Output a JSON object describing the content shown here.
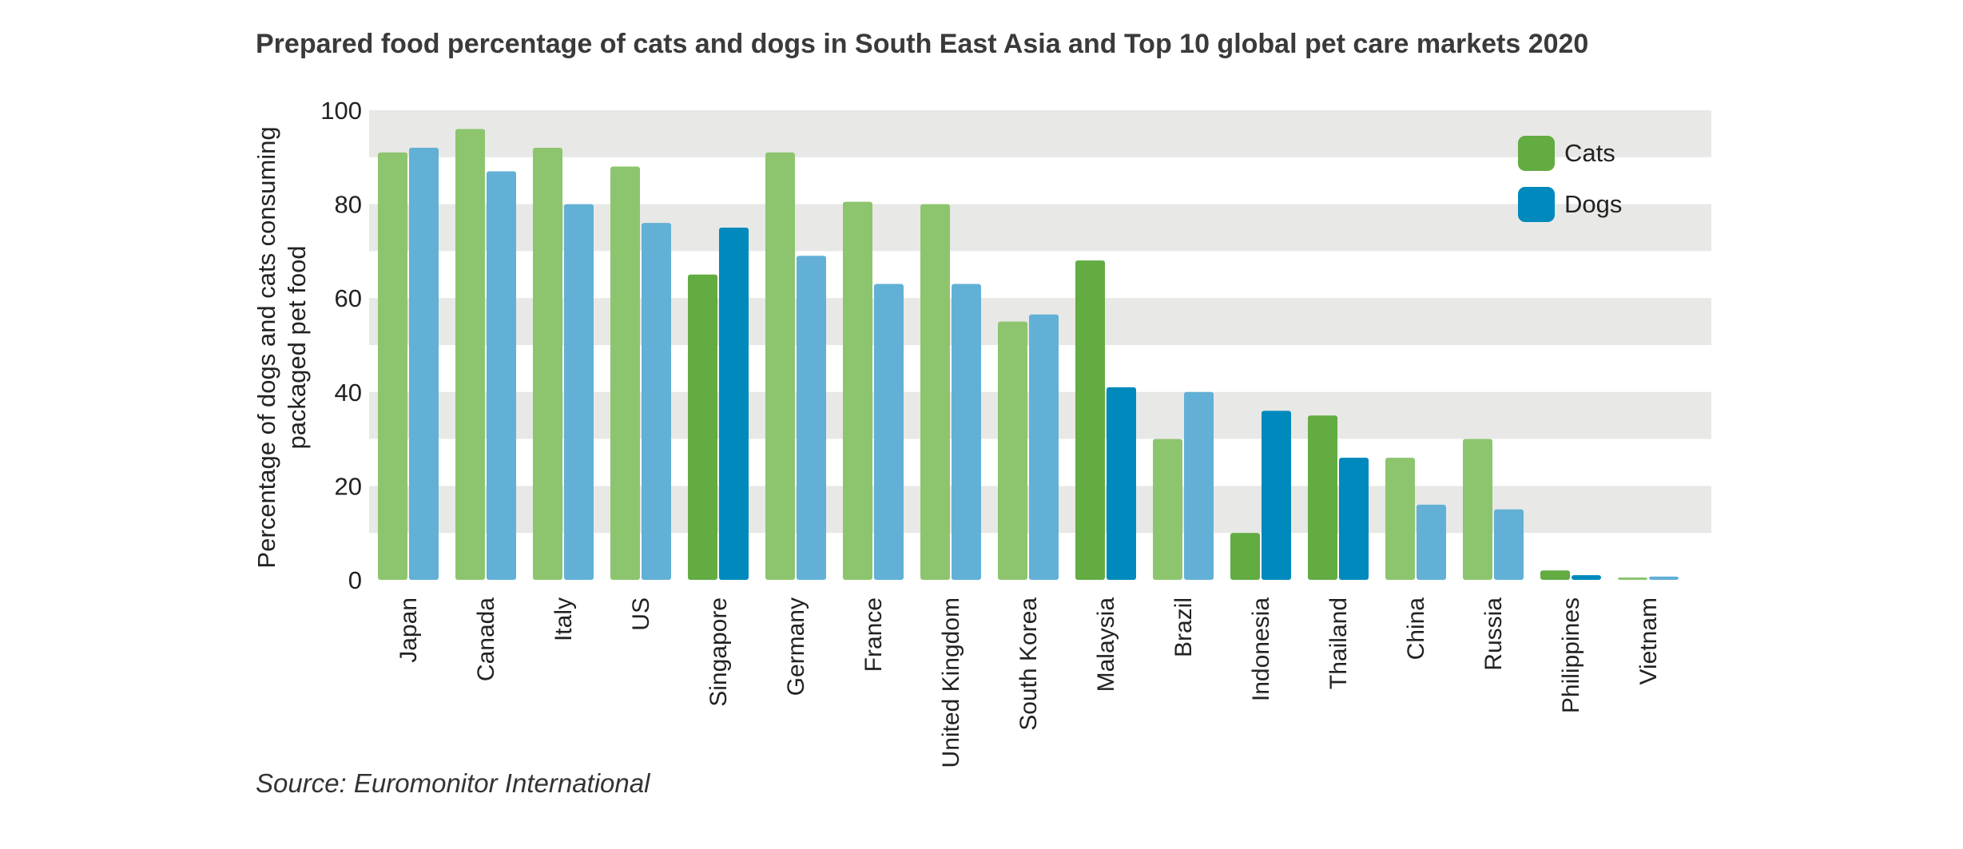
{
  "title": "Prepared food percentage of cats and dogs in South East Asia and Top 10 global pet care markets 2020",
  "source": "Source: Euromonitor International",
  "colors": {
    "cats_light": "#8dc56e",
    "cats_dark": "#62ac42",
    "dogs_light": "#62b0d6",
    "dogs_dark": "#0089bd",
    "band": "#e8e8e6"
  },
  "chart_data": {
    "type": "bar",
    "title": "Prepared food percentage of cats and dogs in South East Asia and Top 10 global pet care markets 2020",
    "ylabel_line1": "Percentage of dogs and cats consuming",
    "ylabel_line2": "packaged pet food",
    "xlabel": "",
    "ylim": [
      0,
      100
    ],
    "yticks": [
      "0",
      "20",
      "40",
      "60",
      "80",
      "100"
    ],
    "categories": [
      "Japan",
      "Canada",
      "Italy",
      "US",
      "Singapore",
      "Germany",
      "France",
      "United Kingdom",
      "South Korea",
      "Malaysia",
      "Brazil",
      "Indonesia",
      "Thailand",
      "China",
      "Russia",
      "Philippines",
      "Vietnam"
    ],
    "south_east_asia": [
      "Singapore",
      "Malaysia",
      "Indonesia",
      "Thailand",
      "Philippines"
    ],
    "series": [
      {
        "name": "Cats",
        "values": [
          91,
          96,
          92,
          88,
          65,
          91,
          80.5,
          80,
          55,
          68,
          30,
          10,
          35,
          26,
          30,
          2,
          0.5
        ]
      },
      {
        "name": "Dogs",
        "values": [
          92,
          87,
          80,
          76,
          75,
          69,
          63,
          63,
          56.5,
          41,
          40,
          36,
          26,
          16,
          15,
          1,
          0.7
        ]
      }
    ],
    "legend": [
      "Cats",
      "Dogs"
    ],
    "legend_position": "top-right",
    "grid": "horizontal bands"
  }
}
